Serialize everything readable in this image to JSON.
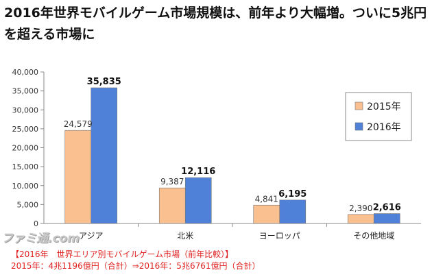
{
  "headline": "2016年世界モバイルゲーム市場規模は、前年より大幅増。ついに5兆円を超える市場に",
  "watermark": "ファミ通.com",
  "caption": {
    "line1": "【2016年　世界エリア別モバイルゲーム市場（前年比較）】",
    "line2": "2015年：4兆1196億円（合計）⇒2016年：5兆6761億円（合計）"
  },
  "chart_data": {
    "type": "bar",
    "categories": [
      "アジア",
      "北米",
      "ヨーロッパ",
      "その他地域"
    ],
    "series": [
      {
        "name": "2015年",
        "values": [
          24579,
          9387,
          4841,
          2390
        ],
        "labels": [
          "24,579",
          "9,387",
          "4,841",
          "2,390"
        ],
        "color": "#fac090"
      },
      {
        "name": "2016年",
        "values": [
          35835,
          12116,
          6195,
          2616
        ],
        "labels": [
          "35,835",
          "12,116",
          "6,195",
          "2,616"
        ],
        "color": "#4f81d9"
      }
    ],
    "ylim": [
      0,
      40000
    ],
    "yticks": [
      0,
      5000,
      10000,
      15000,
      20000,
      25000,
      30000,
      35000,
      40000
    ],
    "ytick_labels": [
      "0",
      "5,000",
      "10,000",
      "15,000",
      "20,000",
      "25,000",
      "30,000",
      "35,000",
      "40,000"
    ],
    "grid": false,
    "legend": "right"
  }
}
